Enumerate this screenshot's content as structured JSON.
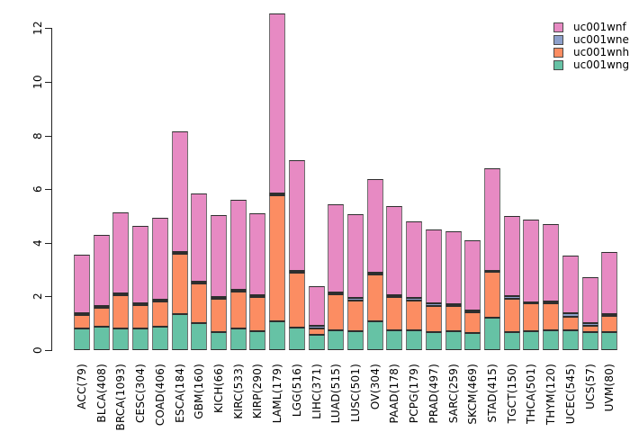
{
  "chart_data": {
    "type": "bar",
    "stacked": true,
    "orientation": "vertical",
    "title": "",
    "xlabel": "",
    "ylabel": "",
    "categories": [
      "ACC(79)",
      "BLCA(408)",
      "BRCA(1093)",
      "CESC(304)",
      "COAD(406)",
      "ESCA(184)",
      "GBM(160)",
      "KICH(66)",
      "KIRC(533)",
      "KIRP(290)",
      "LAML(179)",
      "LGG(516)",
      "LIHC(371)",
      "LUAD(515)",
      "LUSC(501)",
      "OV(304)",
      "PAAD(178)",
      "PCPG(179)",
      "PRAD(497)",
      "SARC(259)",
      "SKCM(469)",
      "STAD(415)",
      "TGCT(150)",
      "THCA(501)",
      "THYM(120)",
      "UCEC(545)",
      "UCS(57)",
      "UVM(80)"
    ],
    "series": [
      {
        "name": "uc001wng",
        "color": "#66C2A5",
        "values": [
          0.8,
          0.88,
          0.8,
          0.8,
          0.87,
          1.35,
          1.0,
          0.68,
          0.79,
          0.71,
          1.06,
          0.84,
          0.57,
          0.75,
          0.7,
          1.06,
          0.75,
          0.74,
          0.68,
          0.7,
          0.65,
          1.22,
          0.67,
          0.69,
          0.73,
          0.73,
          0.67,
          0.67
        ]
      },
      {
        "name": "uc001wnh",
        "color": "#FC8D62",
        "values": [
          0.5,
          0.69,
          1.25,
          0.88,
          0.93,
          2.25,
          1.5,
          1.22,
          1.4,
          1.28,
          4.72,
          2.06,
          0.22,
          1.33,
          1.16,
          1.76,
          1.23,
          1.12,
          0.97,
          0.95,
          0.76,
          1.69,
          1.23,
          1.04,
          1.03,
          0.52,
          0.23,
          0.59
        ]
      },
      {
        "name": "uc001wne",
        "color": "#8DA0CB",
        "values": [
          0.07,
          0.08,
          0.07,
          0.05,
          0.08,
          0.06,
          0.05,
          0.07,
          0.06,
          0.06,
          0.06,
          0.06,
          0.11,
          0.07,
          0.08,
          0.06,
          0.08,
          0.07,
          0.08,
          0.06,
          0.06,
          0.04,
          0.11,
          0.06,
          0.06,
          0.12,
          0.11,
          0.08
        ]
      },
      {
        "name": "uc001wnf",
        "color": "#E78AC3",
        "values": [
          2.18,
          2.65,
          3.0,
          2.9,
          3.05,
          4.5,
          3.3,
          3.08,
          3.35,
          3.05,
          6.71,
          4.12,
          1.48,
          3.3,
          3.13,
          3.5,
          3.32,
          2.87,
          2.77,
          2.73,
          2.61,
          3.82,
          3.0,
          3.07,
          2.88,
          2.15,
          1.71,
          2.32
        ]
      }
    ],
    "legend": {
      "position": "top-right",
      "entries": [
        {
          "label": "uc001wnf",
          "color": "#E78AC3"
        },
        {
          "label": "uc001wne",
          "color": "#8DA0CB"
        },
        {
          "label": "uc001wnh",
          "color": "#FC8D62"
        },
        {
          "label": "uc001wng",
          "color": "#66C2A5"
        }
      ]
    },
    "y_axis": {
      "ticks": [
        0,
        2,
        4,
        6,
        8,
        10,
        12
      ],
      "tick_labels": [
        "0",
        "2",
        "4",
        "6",
        "8",
        "10",
        "12"
      ],
      "lim": [
        0,
        12.6
      ],
      "label_rotation": -90
    },
    "x_axis": {
      "label_rotation": -90
    },
    "grid": false
  }
}
